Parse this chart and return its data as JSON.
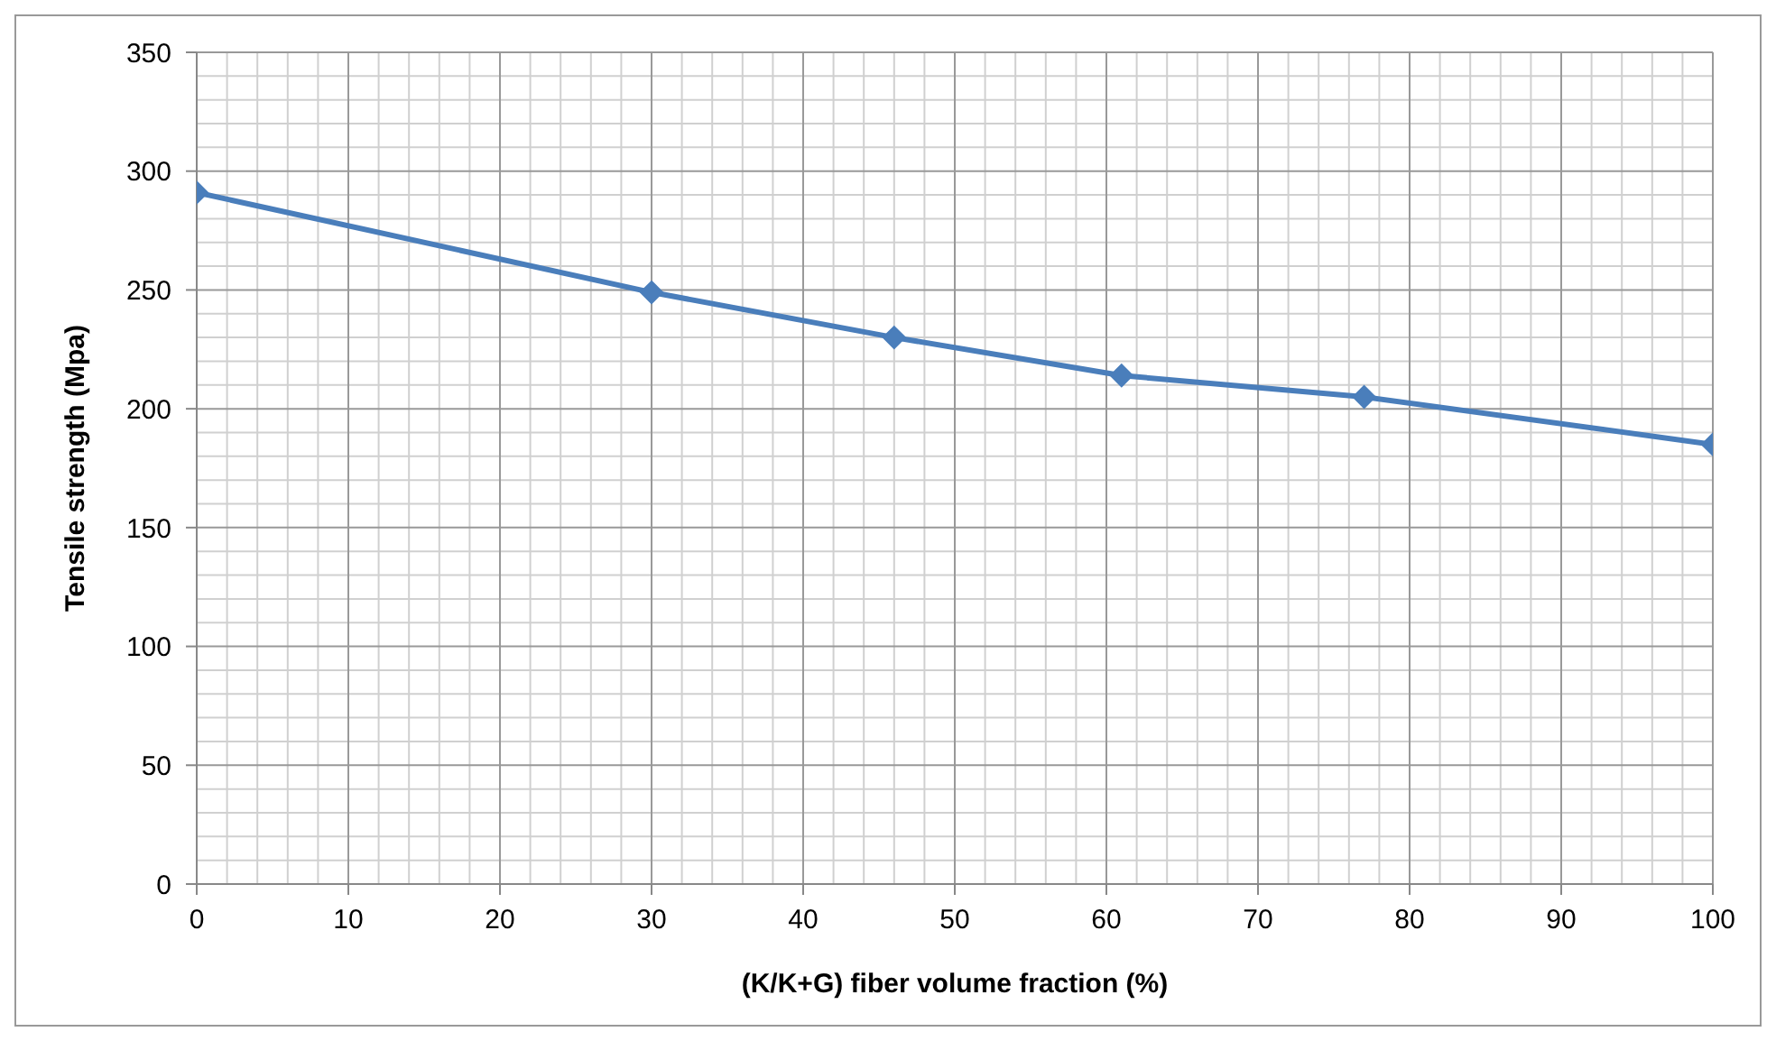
{
  "chart_data": {
    "type": "line",
    "xlabel": "(K/K+G) fiber volume fraction (%)",
    "ylabel": "Tensile strength (Mpa)",
    "x": [
      0,
      30,
      46,
      61,
      77,
      100
    ],
    "series": [
      {
        "color": "#4a7ebb",
        "values": [
          291,
          249,
          230,
          214,
          205,
          185
        ]
      }
    ],
    "xlim": [
      0,
      100
    ],
    "xticks": [
      0,
      10,
      20,
      30,
      40,
      50,
      60,
      70,
      80,
      90,
      100
    ],
    "ylim": [
      0,
      350
    ],
    "yticks": [
      0,
      50,
      100,
      150,
      200,
      250,
      300,
      350
    ],
    "grid": true,
    "marker": "diamond",
    "line_style": "solid"
  }
}
